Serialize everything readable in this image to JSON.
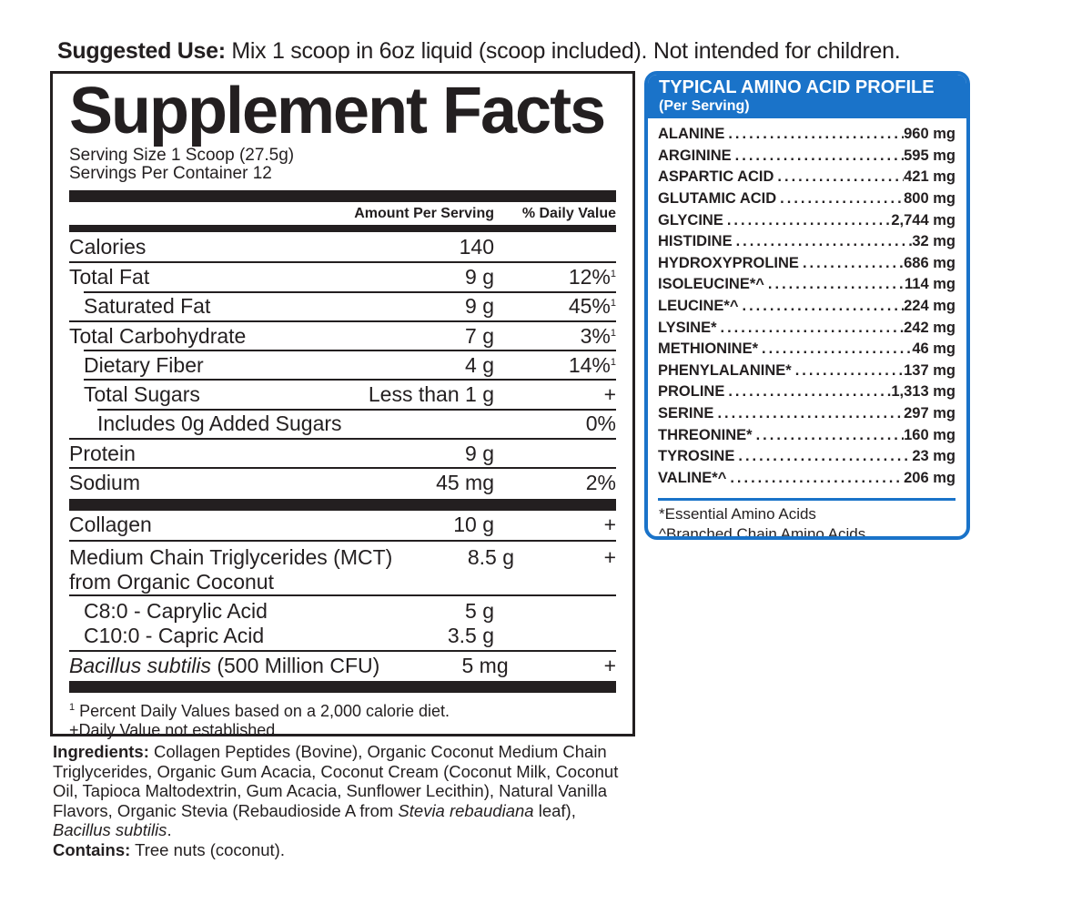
{
  "suggested_use": {
    "label": "Suggested Use:",
    "text": " Mix 1 scoop in 6oz liquid (scoop included). Not intended for children."
  },
  "facts": {
    "title": "Supplement Facts",
    "serving_size": "Serving Size 1 Scoop (27.5g)",
    "servings_per_container": "Servings Per Container 12",
    "header_amount": "Amount Per Serving",
    "header_dv": "% Daily Value",
    "rows": [
      {
        "name": "Calories",
        "amount": "140",
        "dv": ""
      },
      {
        "name": "Total Fat",
        "amount": "9 g",
        "dv": "12%",
        "note": "1"
      },
      {
        "name": "Saturated Fat",
        "amount": "9 g",
        "dv": "45%",
        "note": "1"
      },
      {
        "name": "Total Carbohydrate",
        "amount": "7 g",
        "dv": "3%",
        "note": "1"
      },
      {
        "name": "Dietary Fiber",
        "amount": "4 g",
        "dv": "14%",
        "note": "1"
      },
      {
        "name": "Total Sugars",
        "amount": "Less than 1 g",
        "dv": "+"
      },
      {
        "name": "Includes 0g Added Sugars",
        "amount": "",
        "dv": "0%"
      },
      {
        "name": "Protein",
        "amount": "9 g",
        "dv": ""
      },
      {
        "name": "Sodium",
        "amount": "45 mg",
        "dv": "2%"
      }
    ],
    "rows2": [
      {
        "name": "Collagen",
        "amount": "10 g",
        "dv": "+"
      },
      {
        "name": "Medium Chain Triglycerides (MCT)",
        "name2": "from Organic Coconut",
        "amount": "8.5 g",
        "dv": "+"
      },
      {
        "name": "C8:0 - Caprylic Acid",
        "amount": "5 g"
      },
      {
        "name": "C10:0 - Capric Acid",
        "amount": "3.5 g"
      },
      {
        "name_italic": "Bacillus subtilis",
        "name": " (500 Million CFU)",
        "amount": "5 mg",
        "dv": "+"
      }
    ],
    "footnote1_mark": "1",
    "footnote1": " Percent Daily Values based on a 2,000 calorie diet.",
    "footnote2": "+Daily Value not established."
  },
  "ingredients": {
    "label": "Ingredients:",
    "text1": " Collagen Peptides (Bovine), Organic Coconut Medium Chain Triglycerides, Organic Gum Acacia, Coconut Cream (Coconut Milk, Coconut Oil, Tapioca Maltodextrin, Gum Acacia, Sunflower Lecithin), Natural Vanilla Flavors, Organic Stevia (Rebaudioside A from ",
    "italic1": "Stevia rebaudiana",
    "text2": " leaf), ",
    "italic2": "Bacillus subtilis",
    "text3": ".",
    "contains_label": "Contains:",
    "contains": " Tree nuts (coconut)."
  },
  "amino": {
    "title": "TYPICAL AMINO ACID PROFILE",
    "subtitle": "(Per Serving)",
    "accent_color": "#1a73c9",
    "items": [
      {
        "name": "ALANINE",
        "value": "960 mg"
      },
      {
        "name": "ARGININE",
        "value": "595 mg"
      },
      {
        "name": "ASPARTIC ACID",
        "value": "421 mg"
      },
      {
        "name": "GLUTAMIC ACID",
        "value": "800 mg"
      },
      {
        "name": "GLYCINE",
        "value": "2,744 mg"
      },
      {
        "name": "HISTIDINE",
        "value": "32 mg"
      },
      {
        "name": "HYDROXYPROLINE",
        "value": "686 mg"
      },
      {
        "name": "ISOLEUCINE*^",
        "value": "114 mg"
      },
      {
        "name": "LEUCINE*^",
        "value": "224 mg"
      },
      {
        "name": "LYSINE*",
        "value": "242 mg"
      },
      {
        "name": "METHIONINE*",
        "value": "46 mg"
      },
      {
        "name": "PHENYLALANINE*",
        "value": "137 mg"
      },
      {
        "name": "PROLINE",
        "value": "1,313 mg"
      },
      {
        "name": "SERINE",
        "value": "297 mg"
      },
      {
        "name": "THREONINE*",
        "value": "160 mg"
      },
      {
        "name": "TYROSINE",
        "value": "23 mg"
      },
      {
        "name": "VALINE*^",
        "value": "206 mg"
      }
    ],
    "note1": "*Essential Amino Acids",
    "note2": "^Branched Chain Amino Acids"
  }
}
